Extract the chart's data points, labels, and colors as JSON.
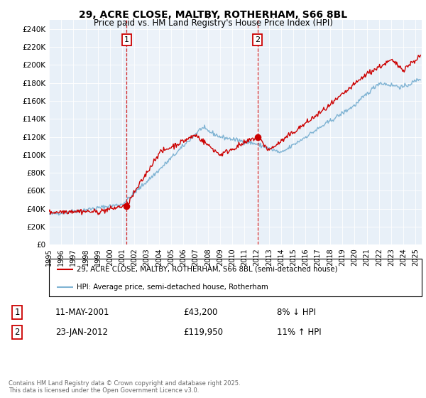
{
  "title": "29, ACRE CLOSE, MALTBY, ROTHERHAM, S66 8BL",
  "subtitle": "Price paid vs. HM Land Registry's House Price Index (HPI)",
  "legend_label_red": "29, ACRE CLOSE, MALTBY, ROTHERHAM, S66 8BL (semi-detached house)",
  "legend_label_blue": "HPI: Average price, semi-detached house, Rotherham",
  "marker1_price": 43200,
  "marker1_text": "11-MAY-2001",
  "marker1_price_text": "£43,200",
  "marker1_pct_text": "8% ↓ HPI",
  "marker2_price": 119950,
  "marker2_text": "23-JAN-2012",
  "marker2_price_text": "£119,950",
  "marker2_pct_text": "11% ↑ HPI",
  "footer": "Contains HM Land Registry data © Crown copyright and database right 2025.\nThis data is licensed under the Open Government Licence v3.0.",
  "red_color": "#cc0000",
  "blue_color": "#7fb3d3",
  "background_color": "#dce9f5",
  "chart_bg": "#e8f0f8",
  "ylim": [
    0,
    250000
  ],
  "yticks": [
    0,
    20000,
    40000,
    60000,
    80000,
    100000,
    120000,
    140000,
    160000,
    180000,
    200000,
    220000,
    240000
  ],
  "xlim_start": 1995.0,
  "xlim_end": 2025.5,
  "marker1_x": 2001.36,
  "marker2_x": 2012.06
}
